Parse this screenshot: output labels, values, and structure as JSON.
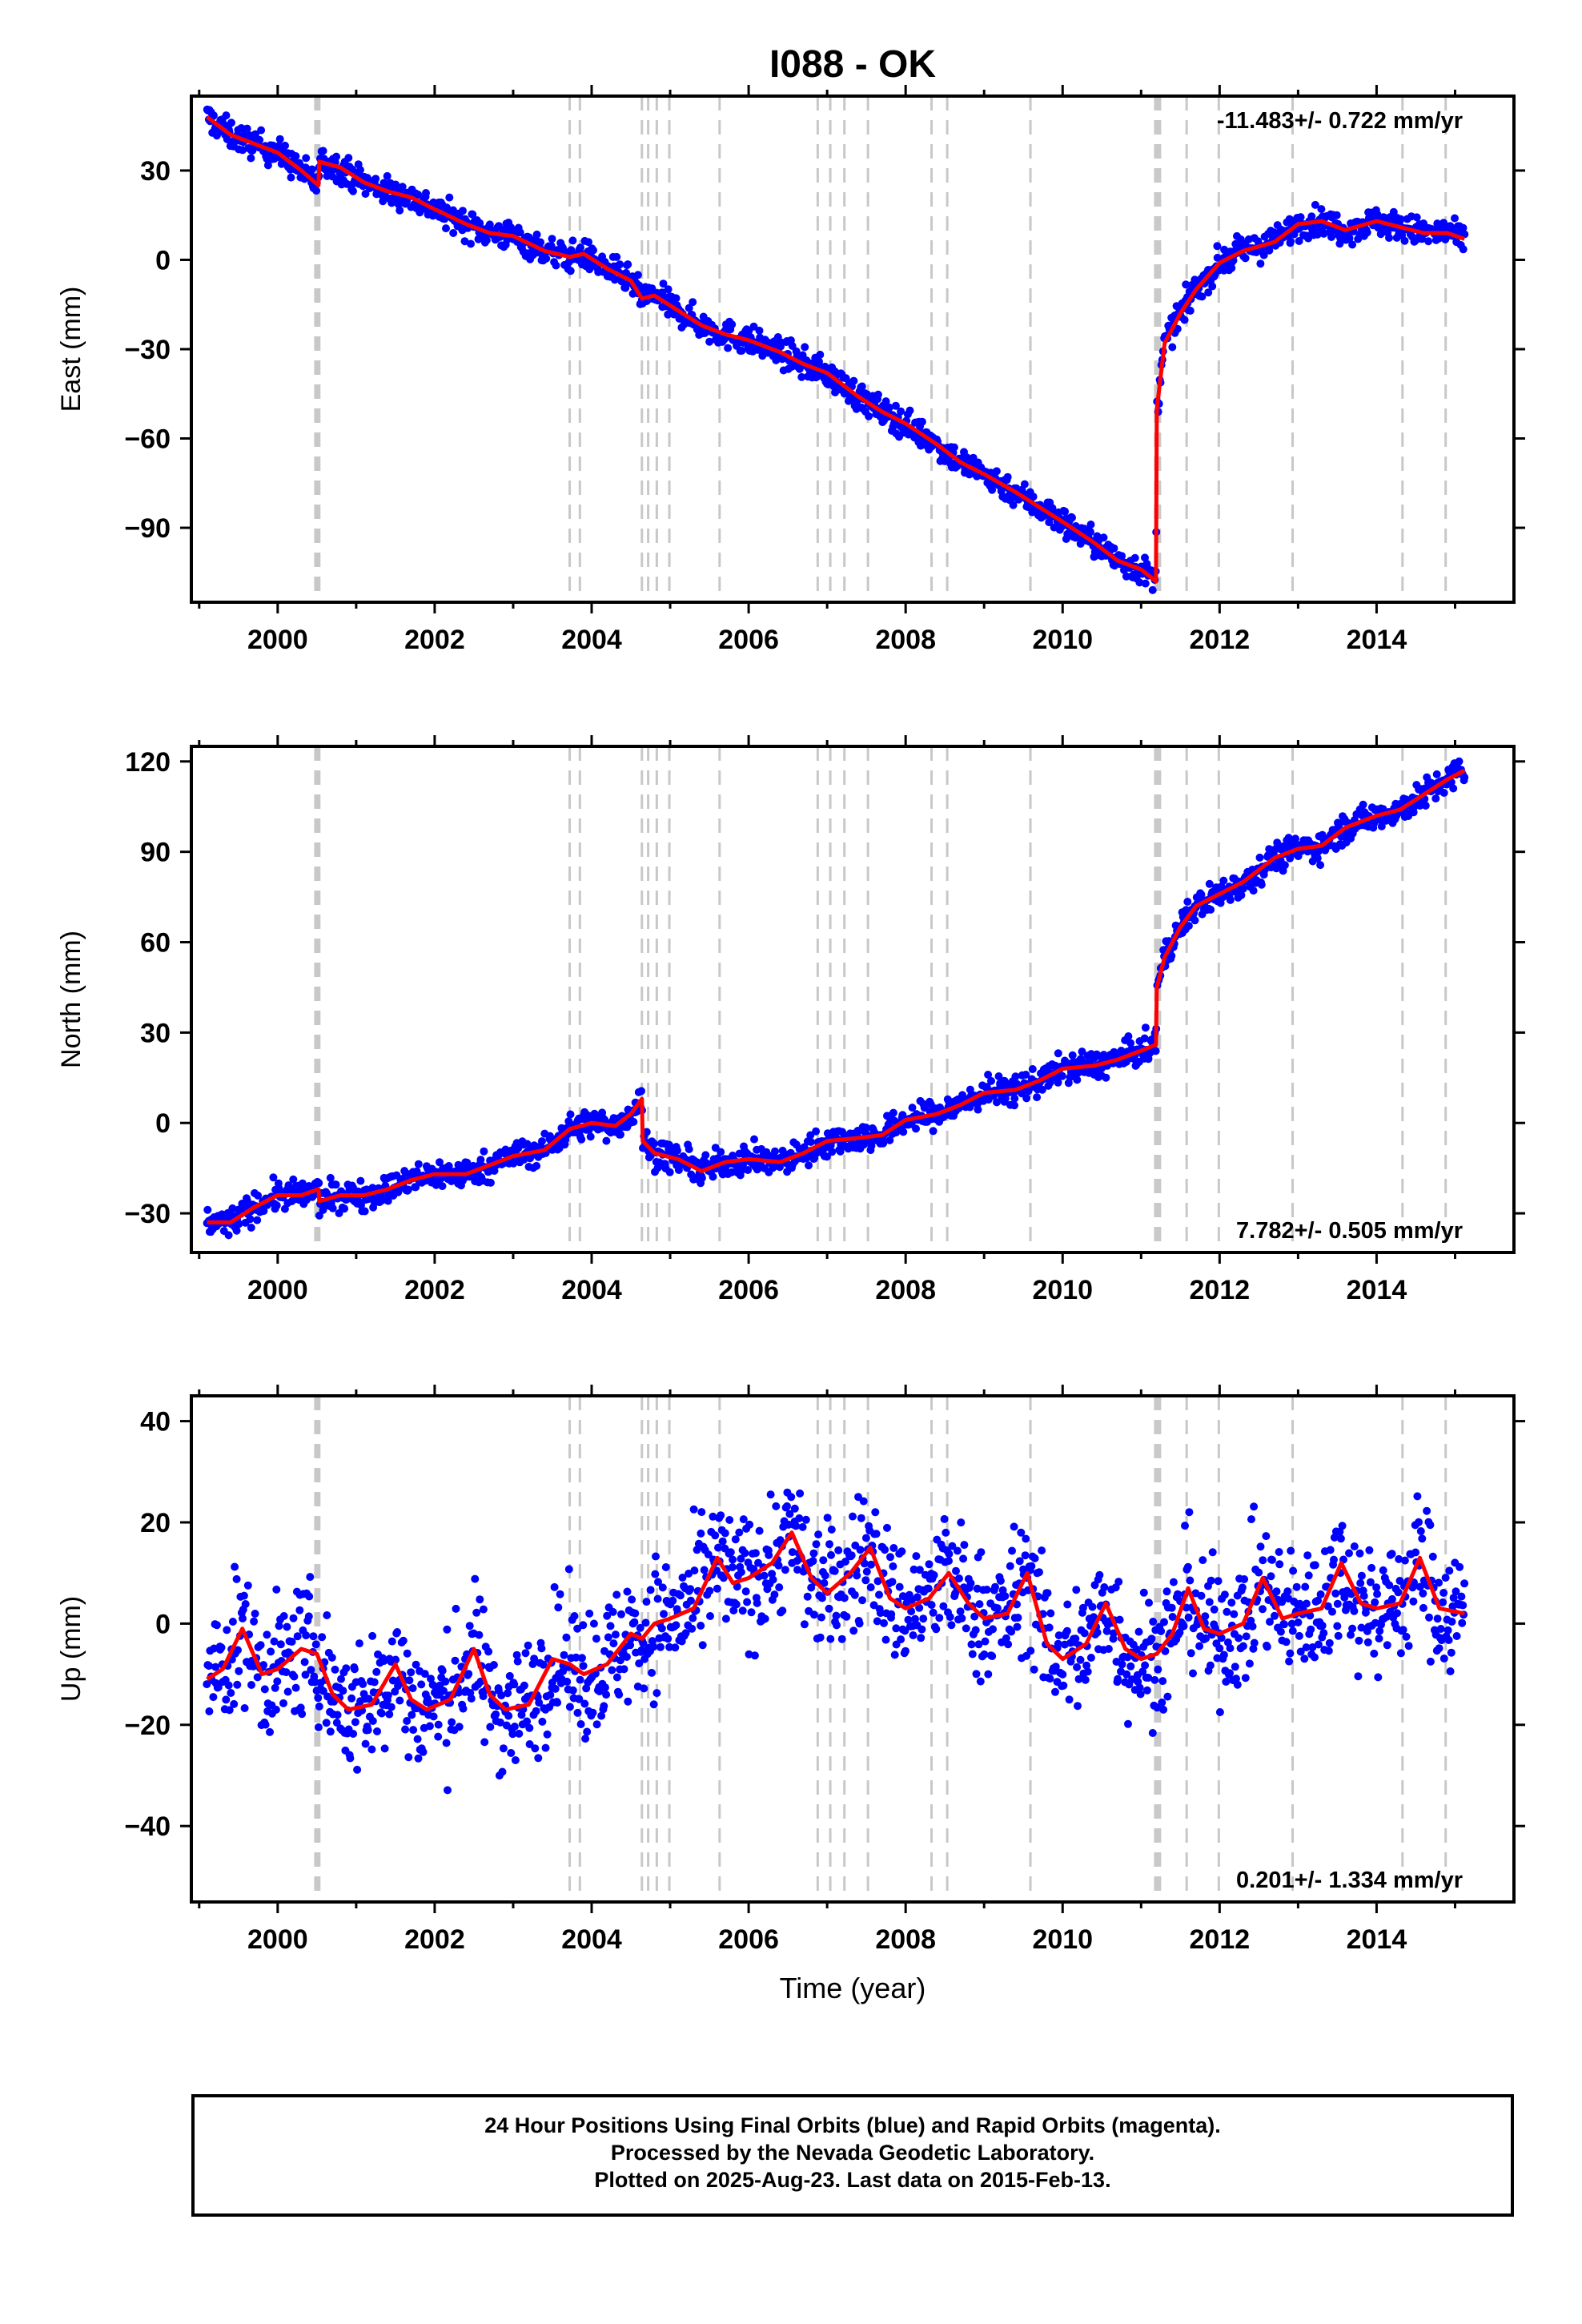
{
  "chart_data": {
    "type": "scatter",
    "title": "I088 - OK",
    "xlabel": "Time (year)",
    "xlim": [
      1998.9,
      2015.75
    ],
    "x_ticks": [
      2000,
      2002,
      2004,
      2006,
      2008,
      2010,
      2012,
      2014
    ],
    "x_tick_labels": [
      "2000",
      "2002",
      "2004",
      "2006",
      "2008",
      "2010",
      "2012",
      "2014"
    ],
    "event_lines": [
      2000.48,
      2000.49,
      2000.5,
      2000.51,
      2000.52,
      2000.53,
      2003.72,
      2003.85,
      2004.64,
      2004.72,
      2004.83,
      2004.99,
      2005.63,
      2006.88,
      2007.04,
      2007.22,
      2007.52,
      2008.33,
      2008.53,
      2009.59,
      2011.18,
      2011.21,
      2011.24,
      2011.58,
      2011.99,
      2012.93,
      2014.33,
      2014.88
    ],
    "colors": {
      "data_points": "#0000ff",
      "model_fit": "#ff0000",
      "event_lines": "#c8c8c8"
    },
    "panels": [
      {
        "name": "east",
        "ylabel": "East (mm)",
        "ylim": [
          -115,
          55
        ],
        "y_ticks": [
          30,
          0,
          -30,
          -60,
          -90
        ],
        "y_tick_labels": [
          "30",
          "0",
          "−30",
          "−60",
          "−90"
        ],
        "rate_label": "-11.483+/- 0.722 mm/yr",
        "rate_label_position": "top-right",
        "series": [
          {
            "name": "model",
            "x": [
              1999.1,
              1999.4,
              1999.7,
              2000.0,
              2000.3,
              2000.52,
              2000.53,
              2000.8,
              2001.1,
              2001.4,
              2001.7,
              2002.0,
              2002.4,
              2002.7,
              2003.0,
              2003.4,
              2003.72,
              2003.9,
              2004.2,
              2004.5,
              2004.64,
              2004.8,
              2005.1,
              2005.4,
              2005.7,
              2006.0,
              2006.4,
              2006.7,
              2007.0,
              2007.4,
              2007.7,
              2008.0,
              2008.4,
              2008.7,
              2009.0,
              2009.4,
              2009.7,
              2010.0,
              2010.4,
              2010.7,
              2011.0,
              2011.19,
              2011.2,
              2011.3,
              2011.5,
              2011.7,
              2012.0,
              2012.3,
              2012.7,
              2013.0,
              2013.3,
              2013.6,
              2014.0,
              2014.3,
              2014.6,
              2014.9,
              2015.12
            ],
            "y": [
              48,
              42,
              39,
              36,
              30,
              25,
              33,
              31,
              26,
              23,
              21,
              17,
              12,
              9,
              8,
              3,
              1,
              2,
              -3,
              -7,
              -13,
              -12,
              -17,
              -22,
              -25,
              -27,
              -31,
              -35,
              -38,
              -46,
              -51,
              -55,
              -62,
              -68,
              -72,
              -78,
              -83,
              -88,
              -95,
              -101,
              -104,
              -108,
              -50,
              -28,
              -18,
              -10,
              -1,
              3,
              6,
              12,
              13,
              10,
              13,
              11,
              9,
              9,
              7
            ]
          }
        ]
      },
      {
        "name": "north",
        "ylabel": "North (mm)",
        "ylim": [
          -43,
          125
        ],
        "y_ticks": [
          120,
          90,
          60,
          30,
          0,
          -30
        ],
        "y_tick_labels": [
          "120",
          "90",
          "60",
          "30",
          "0",
          "−30"
        ],
        "rate_label": "7.782+/- 0.505 mm/yr",
        "rate_label_position": "bottom-right",
        "series": [
          {
            "name": "model",
            "x": [
              1999.1,
              1999.4,
              1999.7,
              2000.0,
              2000.3,
              2000.52,
              2000.53,
              2000.8,
              2001.1,
              2001.4,
              2001.7,
              2002.0,
              2002.4,
              2002.7,
              2003.0,
              2003.4,
              2003.72,
              2004.0,
              2004.3,
              2004.5,
              2004.64,
              2004.65,
              2004.8,
              2005.1,
              2005.4,
              2005.7,
              2006.0,
              2006.4,
              2006.7,
              2007.0,
              2007.4,
              2007.7,
              2008.0,
              2008.4,
              2008.7,
              2009.0,
              2009.4,
              2009.7,
              2010.0,
              2010.4,
              2010.7,
              2011.0,
              2011.19,
              2011.2,
              2011.3,
              2011.5,
              2011.7,
              2012.0,
              2012.3,
              2012.7,
              2013.0,
              2013.3,
              2013.6,
              2014.0,
              2014.3,
              2014.6,
              2014.9,
              2015.12
            ],
            "y": [
              -33,
              -33,
              -28,
              -24,
              -24,
              -22,
              -26,
              -24,
              -24,
              -22,
              -19,
              -17,
              -17,
              -14,
              -11,
              -9,
              -2,
              0,
              -1,
              3,
              8,
              -6,
              -10,
              -12,
              -16,
              -13,
              -12,
              -13,
              -10,
              -6,
              -5,
              -4,
              1,
              3,
              6,
              10,
              11,
              14,
              18,
              19,
              21,
              24,
              26,
              45,
              55,
              65,
              72,
              76,
              80,
              88,
              91,
              92,
              98,
              102,
              104,
              109,
              114,
              117
            ]
          }
        ]
      },
      {
        "name": "up",
        "ylabel": "Up (mm)",
        "ylim": [
          -55,
          45
        ],
        "y_ticks": [
          40,
          20,
          0,
          -20,
          -40
        ],
        "y_tick_labels": [
          "40",
          "20",
          "0",
          "−20",
          "−40"
        ],
        "rate_label": "0.201+/- 1.334 mm/yr",
        "rate_label_position": "bottom-right",
        "series": [
          {
            "name": "model",
            "x": [
              1999.1,
              1999.3,
              1999.55,
              1999.8,
              2000.0,
              2000.3,
              2000.5,
              2000.7,
              2000.9,
              2001.2,
              2001.5,
              2001.7,
              2001.9,
              2002.2,
              2002.5,
              2002.7,
              2002.9,
              2003.2,
              2003.5,
              2003.72,
              2003.9,
              2004.2,
              2004.5,
              2004.64,
              2004.8,
              2005.0,
              2005.3,
              2005.6,
              2005.8,
              2006.0,
              2006.3,
              2006.55,
              2006.8,
              2007.0,
              2007.3,
              2007.55,
              2007.8,
              2008.0,
              2008.3,
              2008.55,
              2008.8,
              2009.0,
              2009.3,
              2009.55,
              2009.8,
              2010.0,
              2010.3,
              2010.55,
              2010.8,
              2011.0,
              2011.2,
              2011.4,
              2011.6,
              2011.8,
              2012.0,
              2012.3,
              2012.55,
              2012.8,
              2013.0,
              2013.3,
              2013.55,
              2013.8,
              2014.0,
              2014.3,
              2014.55,
              2014.8,
              2015.12
            ],
            "y": [
              -11,
              -9,
              -1,
              -10,
              -9,
              -5,
              -6,
              -14,
              -17,
              -16,
              -8,
              -15,
              -17,
              -15,
              -5,
              -14,
              -17,
              -16,
              -7,
              -8,
              -10,
              -8,
              -2,
              -3,
              0,
              1,
              3,
              13,
              8,
              9,
              12,
              18,
              9,
              6,
              10,
              15,
              5,
              3,
              5,
              10,
              4,
              1,
              2,
              10,
              -4,
              -7,
              -4,
              4,
              -5,
              -7,
              -6,
              -2,
              7,
              -1,
              -2,
              0,
              9,
              1,
              2,
              3,
              12,
              4,
              3,
              4,
              13,
              3,
              2
            ]
          }
        ]
      }
    ]
  },
  "footer": {
    "line1": "24 Hour Positions Using Final Orbits (blue) and Rapid Orbits (magenta).",
    "line2": "Processed by the Nevada Geodetic Laboratory.",
    "line3": "Plotted on 2025-Aug-23. Last data on 2015-Feb-13."
  }
}
